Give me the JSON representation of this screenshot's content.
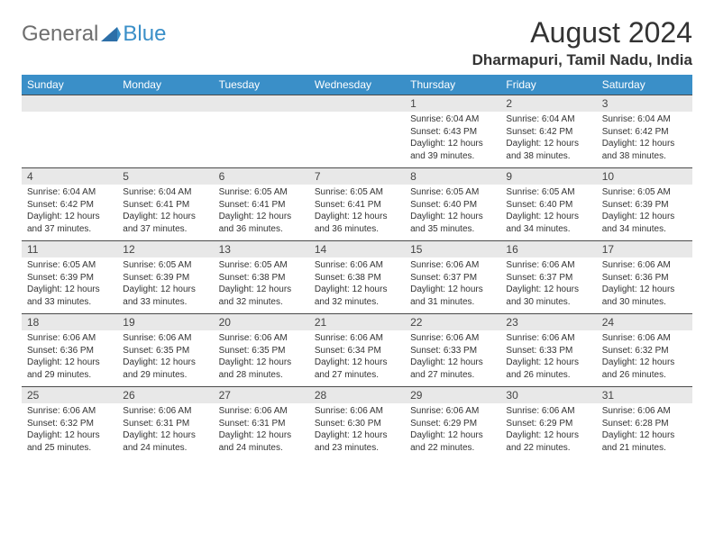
{
  "logo": {
    "general": "General",
    "blue": "Blue"
  },
  "title": "August 2024",
  "location": "Dharmapuri, Tamil Nadu, India",
  "colors": {
    "header_bg": "#3a8fc8",
    "header_text": "#ffffff",
    "daynum_bg": "#e8e8e8",
    "border": "#4a4a4a",
    "text": "#333333",
    "logo_gray": "#6e6e6e",
    "logo_blue": "#3a8fc8"
  },
  "day_headers": [
    "Sunday",
    "Monday",
    "Tuesday",
    "Wednesday",
    "Thursday",
    "Friday",
    "Saturday"
  ],
  "weeks": [
    {
      "nums": [
        "",
        "",
        "",
        "",
        "1",
        "2",
        "3"
      ],
      "cells": [
        {},
        {},
        {},
        {},
        {
          "sunrise": "Sunrise: 6:04 AM",
          "sunset": "Sunset: 6:43 PM",
          "daylight1": "Daylight: 12 hours",
          "daylight2": "and 39 minutes."
        },
        {
          "sunrise": "Sunrise: 6:04 AM",
          "sunset": "Sunset: 6:42 PM",
          "daylight1": "Daylight: 12 hours",
          "daylight2": "and 38 minutes."
        },
        {
          "sunrise": "Sunrise: 6:04 AM",
          "sunset": "Sunset: 6:42 PM",
          "daylight1": "Daylight: 12 hours",
          "daylight2": "and 38 minutes."
        }
      ]
    },
    {
      "nums": [
        "4",
        "5",
        "6",
        "7",
        "8",
        "9",
        "10"
      ],
      "cells": [
        {
          "sunrise": "Sunrise: 6:04 AM",
          "sunset": "Sunset: 6:42 PM",
          "daylight1": "Daylight: 12 hours",
          "daylight2": "and 37 minutes."
        },
        {
          "sunrise": "Sunrise: 6:04 AM",
          "sunset": "Sunset: 6:41 PM",
          "daylight1": "Daylight: 12 hours",
          "daylight2": "and 37 minutes."
        },
        {
          "sunrise": "Sunrise: 6:05 AM",
          "sunset": "Sunset: 6:41 PM",
          "daylight1": "Daylight: 12 hours",
          "daylight2": "and 36 minutes."
        },
        {
          "sunrise": "Sunrise: 6:05 AM",
          "sunset": "Sunset: 6:41 PM",
          "daylight1": "Daylight: 12 hours",
          "daylight2": "and 36 minutes."
        },
        {
          "sunrise": "Sunrise: 6:05 AM",
          "sunset": "Sunset: 6:40 PM",
          "daylight1": "Daylight: 12 hours",
          "daylight2": "and 35 minutes."
        },
        {
          "sunrise": "Sunrise: 6:05 AM",
          "sunset": "Sunset: 6:40 PM",
          "daylight1": "Daylight: 12 hours",
          "daylight2": "and 34 minutes."
        },
        {
          "sunrise": "Sunrise: 6:05 AM",
          "sunset": "Sunset: 6:39 PM",
          "daylight1": "Daylight: 12 hours",
          "daylight2": "and 34 minutes."
        }
      ]
    },
    {
      "nums": [
        "11",
        "12",
        "13",
        "14",
        "15",
        "16",
        "17"
      ],
      "cells": [
        {
          "sunrise": "Sunrise: 6:05 AM",
          "sunset": "Sunset: 6:39 PM",
          "daylight1": "Daylight: 12 hours",
          "daylight2": "and 33 minutes."
        },
        {
          "sunrise": "Sunrise: 6:05 AM",
          "sunset": "Sunset: 6:39 PM",
          "daylight1": "Daylight: 12 hours",
          "daylight2": "and 33 minutes."
        },
        {
          "sunrise": "Sunrise: 6:05 AM",
          "sunset": "Sunset: 6:38 PM",
          "daylight1": "Daylight: 12 hours",
          "daylight2": "and 32 minutes."
        },
        {
          "sunrise": "Sunrise: 6:06 AM",
          "sunset": "Sunset: 6:38 PM",
          "daylight1": "Daylight: 12 hours",
          "daylight2": "and 32 minutes."
        },
        {
          "sunrise": "Sunrise: 6:06 AM",
          "sunset": "Sunset: 6:37 PM",
          "daylight1": "Daylight: 12 hours",
          "daylight2": "and 31 minutes."
        },
        {
          "sunrise": "Sunrise: 6:06 AM",
          "sunset": "Sunset: 6:37 PM",
          "daylight1": "Daylight: 12 hours",
          "daylight2": "and 30 minutes."
        },
        {
          "sunrise": "Sunrise: 6:06 AM",
          "sunset": "Sunset: 6:36 PM",
          "daylight1": "Daylight: 12 hours",
          "daylight2": "and 30 minutes."
        }
      ]
    },
    {
      "nums": [
        "18",
        "19",
        "20",
        "21",
        "22",
        "23",
        "24"
      ],
      "cells": [
        {
          "sunrise": "Sunrise: 6:06 AM",
          "sunset": "Sunset: 6:36 PM",
          "daylight1": "Daylight: 12 hours",
          "daylight2": "and 29 minutes."
        },
        {
          "sunrise": "Sunrise: 6:06 AM",
          "sunset": "Sunset: 6:35 PM",
          "daylight1": "Daylight: 12 hours",
          "daylight2": "and 29 minutes."
        },
        {
          "sunrise": "Sunrise: 6:06 AM",
          "sunset": "Sunset: 6:35 PM",
          "daylight1": "Daylight: 12 hours",
          "daylight2": "and 28 minutes."
        },
        {
          "sunrise": "Sunrise: 6:06 AM",
          "sunset": "Sunset: 6:34 PM",
          "daylight1": "Daylight: 12 hours",
          "daylight2": "and 27 minutes."
        },
        {
          "sunrise": "Sunrise: 6:06 AM",
          "sunset": "Sunset: 6:33 PM",
          "daylight1": "Daylight: 12 hours",
          "daylight2": "and 27 minutes."
        },
        {
          "sunrise": "Sunrise: 6:06 AM",
          "sunset": "Sunset: 6:33 PM",
          "daylight1": "Daylight: 12 hours",
          "daylight2": "and 26 minutes."
        },
        {
          "sunrise": "Sunrise: 6:06 AM",
          "sunset": "Sunset: 6:32 PM",
          "daylight1": "Daylight: 12 hours",
          "daylight2": "and 26 minutes."
        }
      ]
    },
    {
      "nums": [
        "25",
        "26",
        "27",
        "28",
        "29",
        "30",
        "31"
      ],
      "cells": [
        {
          "sunrise": "Sunrise: 6:06 AM",
          "sunset": "Sunset: 6:32 PM",
          "daylight1": "Daylight: 12 hours",
          "daylight2": "and 25 minutes."
        },
        {
          "sunrise": "Sunrise: 6:06 AM",
          "sunset": "Sunset: 6:31 PM",
          "daylight1": "Daylight: 12 hours",
          "daylight2": "and 24 minutes."
        },
        {
          "sunrise": "Sunrise: 6:06 AM",
          "sunset": "Sunset: 6:31 PM",
          "daylight1": "Daylight: 12 hours",
          "daylight2": "and 24 minutes."
        },
        {
          "sunrise": "Sunrise: 6:06 AM",
          "sunset": "Sunset: 6:30 PM",
          "daylight1": "Daylight: 12 hours",
          "daylight2": "and 23 minutes."
        },
        {
          "sunrise": "Sunrise: 6:06 AM",
          "sunset": "Sunset: 6:29 PM",
          "daylight1": "Daylight: 12 hours",
          "daylight2": "and 22 minutes."
        },
        {
          "sunrise": "Sunrise: 6:06 AM",
          "sunset": "Sunset: 6:29 PM",
          "daylight1": "Daylight: 12 hours",
          "daylight2": "and 22 minutes."
        },
        {
          "sunrise": "Sunrise: 6:06 AM",
          "sunset": "Sunset: 6:28 PM",
          "daylight1": "Daylight: 12 hours",
          "daylight2": "and 21 minutes."
        }
      ]
    }
  ]
}
